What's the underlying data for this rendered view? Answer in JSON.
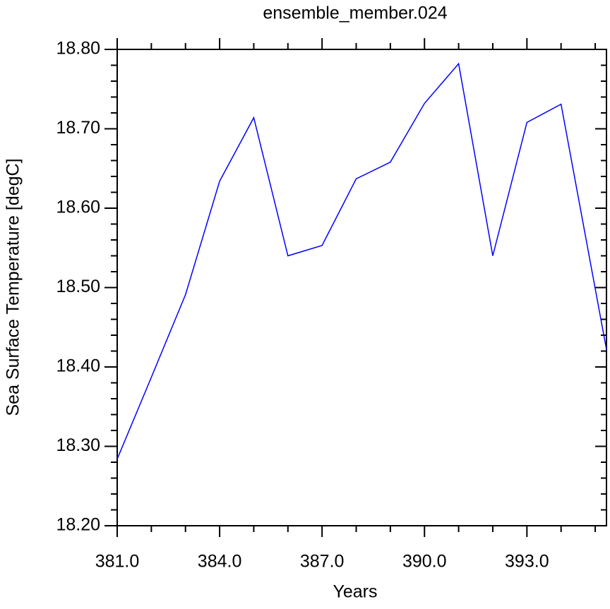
{
  "chart_data": {
    "type": "line",
    "title": "ensemble_member.024",
    "x_label": "Years",
    "y_label": "Sea Surface Temperature [degC]",
    "x": [
      381,
      382,
      383,
      384,
      385,
      386,
      387,
      388,
      389,
      390,
      391,
      392,
      393,
      394,
      395.33
    ],
    "series": [
      {
        "name": "ensemble_member.024",
        "color": "#0000ff",
        "values": [
          18.284,
          18.387,
          18.491,
          18.634,
          18.714,
          18.54,
          18.553,
          18.637,
          18.658,
          18.732,
          18.782,
          18.54,
          18.708,
          18.731,
          18.422
        ]
      }
    ],
    "xlim": [
      381,
      395.33
    ],
    "ylim": [
      18.2,
      18.8
    ],
    "xticks": [
      {
        "value": 381,
        "label": "381.0"
      },
      {
        "value": 384,
        "label": "384.0"
      },
      {
        "value": 387,
        "label": "387.0"
      },
      {
        "value": 390,
        "label": "390.0"
      },
      {
        "value": 393,
        "label": "393.0"
      }
    ],
    "yticks": [
      {
        "value": 18.2,
        "label": "18.20"
      },
      {
        "value": 18.3,
        "label": "18.30"
      },
      {
        "value": 18.4,
        "label": "18.40"
      },
      {
        "value": 18.5,
        "label": "18.50"
      },
      {
        "value": 18.6,
        "label": "18.60"
      },
      {
        "value": 18.7,
        "label": "18.70"
      },
      {
        "value": 18.8,
        "label": "18.80"
      }
    ],
    "grid": false
  }
}
